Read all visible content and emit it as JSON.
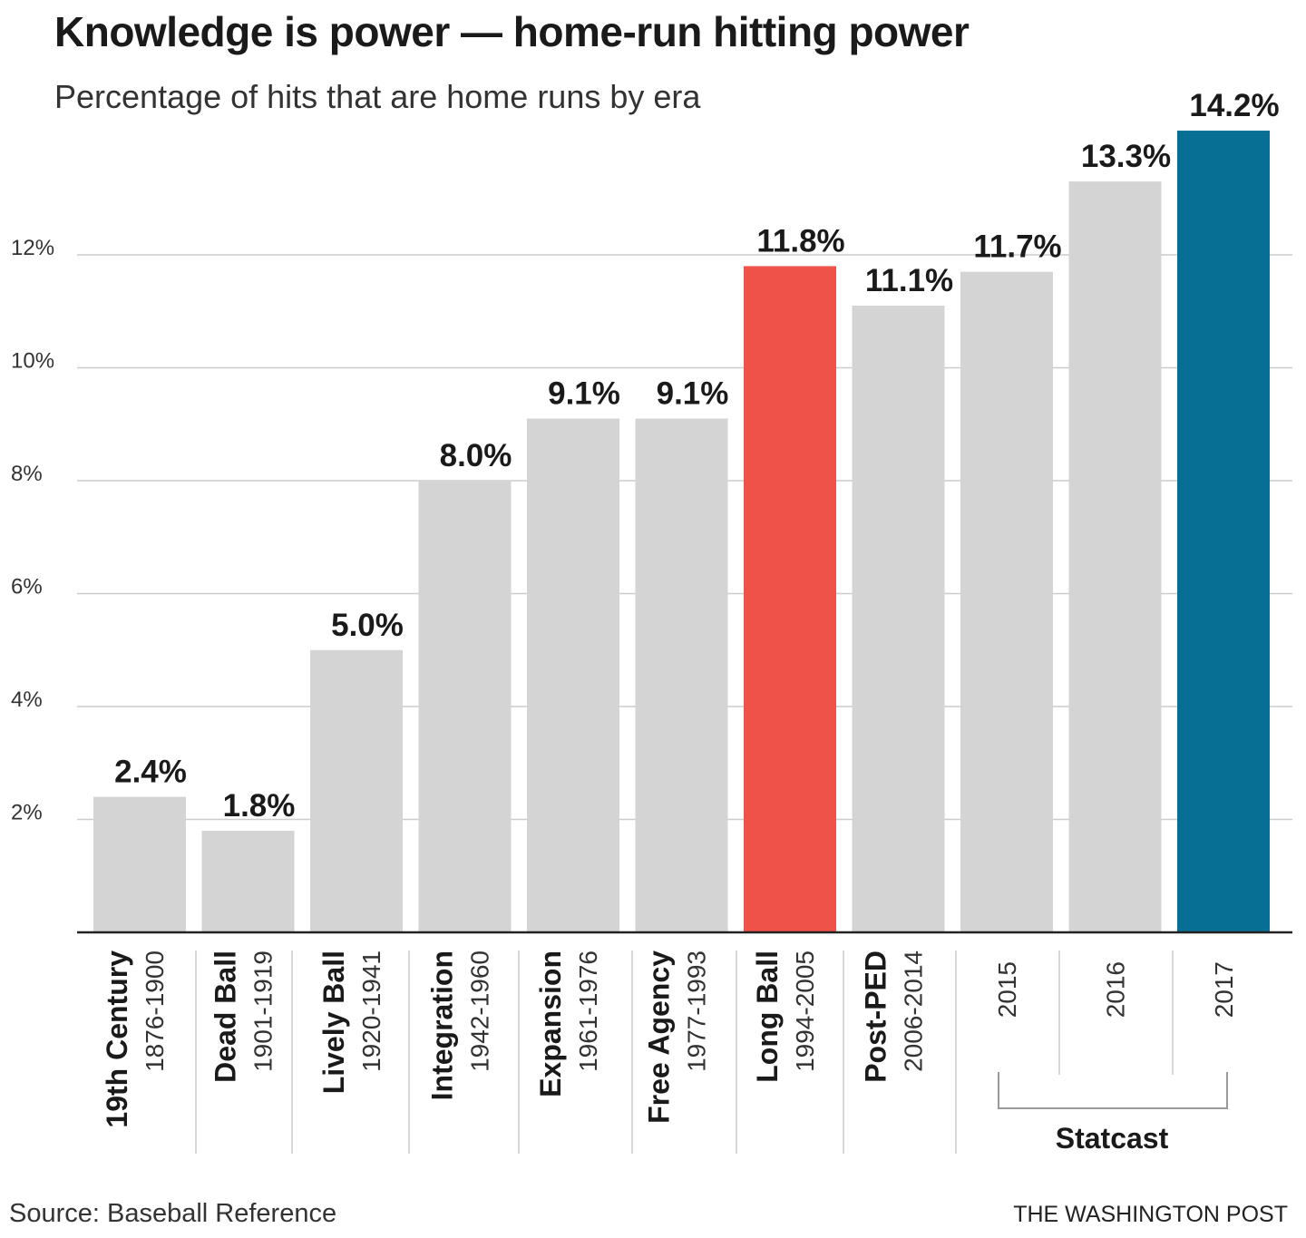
{
  "header": {
    "title": "Knowledge is power — home-run hitting power",
    "subtitle": "Percentage of hits that are home runs by era"
  },
  "footer": {
    "source": "Source: Baseball Reference",
    "credit": "THE WASHINGTON POST"
  },
  "colors": {
    "default_bar": "#d4d4d4",
    "long_ball_bar": "#ef5249",
    "latest_bar": "#076f93",
    "gridline": "#cccccc",
    "axis": "#222222"
  },
  "chart_data": {
    "type": "bar",
    "title": "Knowledge is power — home-run hitting power",
    "subtitle": "Percentage of hits that are home runs by era",
    "ylim": [
      0,
      14.2
    ],
    "yticks": [
      2,
      4,
      6,
      8,
      10,
      12
    ],
    "ytick_labels": [
      "2%",
      "4%",
      "6%",
      "8%",
      "10%",
      "12%"
    ],
    "grid": true,
    "categories": [
      {
        "name": "19th Century",
        "years": "1876-1900",
        "value": 2.4,
        "label": "2.4%",
        "color": "#d4d4d4"
      },
      {
        "name": "Dead Ball",
        "years": "1901-1919",
        "value": 1.8,
        "label": "1.8%",
        "color": "#d4d4d4"
      },
      {
        "name": "Lively Ball",
        "years": "1920-1941",
        "value": 5.0,
        "label": "5.0%",
        "color": "#d4d4d4"
      },
      {
        "name": "Integration",
        "years": "1942-1960",
        "value": 8.0,
        "label": "8.0%",
        "color": "#d4d4d4"
      },
      {
        "name": "Expansion",
        "years": "1961-1976",
        "value": 9.1,
        "label": "9.1%",
        "color": "#d4d4d4"
      },
      {
        "name": "Free Agency",
        "years": "1977-1993",
        "value": 9.1,
        "label": "9.1%",
        "color": "#d4d4d4"
      },
      {
        "name": "Long Ball",
        "years": "1994-2005",
        "value": 11.8,
        "label": "11.8%",
        "color": "#ef5249"
      },
      {
        "name": "Post-PED",
        "years": "2006-2014",
        "value": 11.1,
        "label": "11.1%",
        "color": "#d4d4d4"
      },
      {
        "name": "",
        "years": "2015",
        "value": 11.7,
        "label": "11.7%",
        "color": "#d4d4d4"
      },
      {
        "name": "",
        "years": "2016",
        "value": 13.3,
        "label": "13.3%",
        "color": "#d4d4d4"
      },
      {
        "name": "",
        "years": "2017",
        "value": 14.2,
        "label": "14.2%",
        "color": "#076f93"
      }
    ],
    "group_label": "Statcast"
  }
}
